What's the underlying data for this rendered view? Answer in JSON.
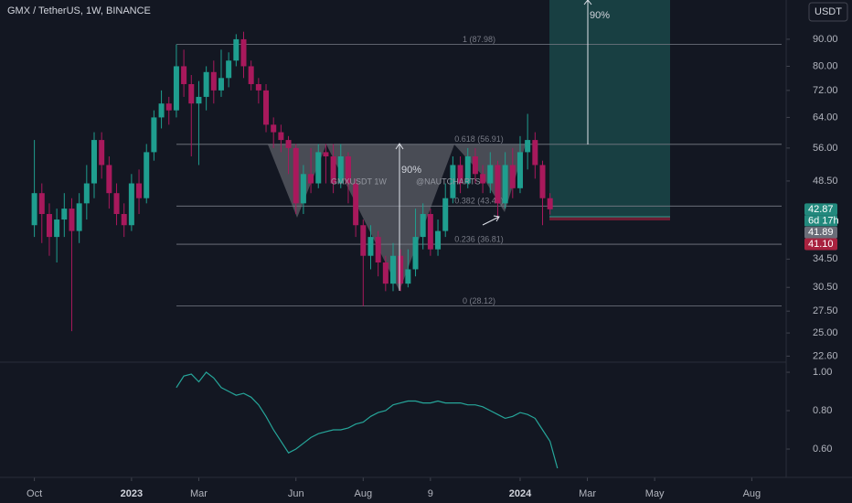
{
  "chart_data": [
    {
      "type": "candlestick",
      "title": "GMX / TetherUS, 1W, BINANCE",
      "log_scale": true,
      "x": [
        0,
        1,
        2,
        3,
        4,
        5,
        6,
        7,
        8,
        9,
        10,
        11,
        12,
        13,
        14,
        15,
        16,
        17,
        18,
        19,
        20,
        21,
        22,
        23,
        24,
        25,
        26,
        27,
        28,
        29,
        30,
        31,
        32,
        33,
        34,
        35,
        36,
        37,
        38,
        39,
        40,
        41,
        42,
        43,
        44,
        45,
        46,
        47,
        48,
        49,
        50,
        51,
        52,
        53,
        54,
        55,
        56,
        57,
        58,
        59,
        60,
        61,
        62,
        63,
        64,
        65,
        66,
        67,
        68,
        69
      ],
      "open": [
        40,
        46,
        42,
        38,
        41,
        43,
        39,
        44,
        48,
        58,
        52,
        46,
        42,
        40,
        48,
        45,
        55,
        64,
        68,
        66,
        80,
        74,
        68,
        70,
        78,
        72,
        76,
        82,
        90,
        80,
        74,
        72,
        62,
        60,
        58,
        56,
        44,
        50,
        48,
        55,
        54,
        48,
        54,
        48,
        40,
        35,
        38,
        34,
        31,
        35,
        31,
        33,
        38,
        42,
        36,
        39,
        45,
        52,
        48,
        54,
        50,
        48,
        52,
        44,
        52,
        47,
        55,
        58,
        52,
        45
      ],
      "high": [
        58,
        48,
        44,
        43,
        46,
        45,
        46,
        52,
        60,
        60,
        54,
        48,
        44,
        50,
        51,
        57,
        66,
        72,
        70,
        88,
        86,
        77,
        75,
        80,
        82,
        86,
        85,
        92,
        93,
        82,
        76,
        74,
        64,
        62,
        59,
        57,
        52,
        56,
        57,
        57,
        57,
        57,
        55,
        49,
        41,
        40,
        39,
        35,
        37,
        36,
        36,
        43,
        44,
        43,
        41,
        48,
        54,
        54,
        56,
        56,
        52,
        55,
        53,
        55,
        56,
        59,
        65,
        60,
        53,
        46
      ],
      "low": [
        38,
        37,
        35,
        34,
        38,
        25.2,
        37,
        41,
        45,
        49,
        43,
        40,
        38,
        39,
        42,
        44,
        53,
        61,
        62,
        64,
        70,
        54,
        52,
        66,
        68,
        70,
        73,
        80,
        76,
        72,
        68,
        60,
        56,
        55,
        50,
        42,
        42,
        46,
        47,
        48,
        46,
        47,
        44,
        38,
        28.1,
        33,
        32,
        30,
        30,
        30,
        30.5,
        32,
        36,
        35,
        35,
        38,
        44,
        46,
        47,
        48,
        46,
        46,
        41,
        43,
        45,
        46,
        51,
        49,
        40,
        41.9
      ],
      "close": [
        46,
        42,
        38,
        41,
        43,
        39,
        44,
        48,
        58,
        52,
        46,
        42,
        40,
        48,
        45,
        55,
        64,
        68,
        66,
        80,
        74,
        68,
        70,
        78,
        72,
        76,
        82,
        90,
        80,
        74,
        72,
        62,
        60,
        58,
        56,
        44,
        50,
        48,
        55,
        54,
        48,
        54,
        48,
        40,
        35,
        38,
        34,
        31,
        35,
        31,
        33,
        38,
        42,
        36,
        39,
        45,
        52,
        48,
        54,
        50,
        48,
        52,
        44,
        52,
        47,
        55,
        58,
        52,
        45,
        42.87
      ],
      "up_color": "#1f9e8f",
      "down_color": "#a8195c",
      "xlim": [
        -4.6,
        100.6
      ],
      "ylim": [
        22.1,
        106.8
      ],
      "yticks": [
        {
          "value": 90,
          "label": "90.00"
        },
        {
          "value": 80,
          "label": "80.00"
        },
        {
          "value": 72,
          "label": "72.00"
        },
        {
          "value": 64,
          "label": "64.00"
        },
        {
          "value": 56,
          "label": "56.00"
        },
        {
          "value": 48.5,
          "label": "48.50"
        },
        {
          "value": 34.5,
          "label": "34.50"
        },
        {
          "value": 30.5,
          "label": "30.50"
        },
        {
          "value": 27.5,
          "label": "27.50"
        },
        {
          "value": 25,
          "label": "25.00"
        },
        {
          "value": 22.6,
          "label": "22.60"
        }
      ],
      "xticks": [
        {
          "value": 0,
          "label": "Oct"
        },
        {
          "value": 13,
          "label": "2023"
        },
        {
          "value": 22,
          "label": "Mar"
        },
        {
          "value": 35,
          "label": "Jun"
        },
        {
          "value": 44,
          "label": "Aug"
        },
        {
          "value": 53,
          "label": "9"
        },
        {
          "value": 65,
          "label": "2024"
        },
        {
          "value": 74,
          "label": "Mar"
        },
        {
          "value": 83,
          "label": "May"
        },
        {
          "value": 96,
          "label": "Aug"
        }
      ],
      "fib_levels": [
        {
          "value": 87.98,
          "label": "1 (87.98)"
        },
        {
          "value": 56.91,
          "label": "0.618 (56.91)"
        },
        {
          "value": 43.48,
          "label": "0.382 (43.48)"
        },
        {
          "value": 36.81,
          "label": "0.236 (36.81)"
        },
        {
          "value": 28.12,
          "label": "0 (28.12)"
        }
      ],
      "price_labels": [
        {
          "value": 42.87,
          "label": "42.87",
          "color": "#22897d"
        },
        {
          "value": 41.89,
          "label": "41.89",
          "color": "#6a6d78"
        },
        {
          "value": 41.1,
          "label": "41.10",
          "color": "#a8223f"
        }
      ],
      "countdown": "6d 17h",
      "annotations": [
        "90%",
        "90%",
        "GMXUSDT 1W",
        "@NAUTCHARTS"
      ],
      "currency_button": "USDT"
    },
    {
      "type": "line",
      "color": "#26a69a",
      "xlim": [
        -4.6,
        100.6
      ],
      "ylim": [
        0.462,
        1.043
      ],
      "yticks": [
        {
          "value": 1,
          "label": "1.00"
        },
        {
          "value": 0.8,
          "label": "0.80"
        },
        {
          "value": 0.6,
          "label": "0.60"
        }
      ],
      "x": [
        19,
        20,
        21,
        22,
        23,
        24,
        25,
        26,
        27,
        28,
        29,
        30,
        31,
        32,
        33,
        34,
        35,
        36,
        37,
        38,
        39,
        40,
        41,
        42,
        43,
        44,
        45,
        46,
        47,
        48,
        49,
        50,
        51,
        52,
        53,
        54,
        55,
        56,
        57,
        58,
        59,
        60,
        61,
        62,
        63,
        64,
        65,
        66,
        67,
        68,
        69,
        70
      ],
      "values": [
        0.92,
        0.98,
        0.99,
        0.95,
        1.0,
        0.97,
        0.92,
        0.9,
        0.88,
        0.89,
        0.87,
        0.83,
        0.77,
        0.7,
        0.64,
        0.58,
        0.6,
        0.63,
        0.66,
        0.68,
        0.69,
        0.7,
        0.7,
        0.71,
        0.73,
        0.74,
        0.77,
        0.79,
        0.8,
        0.83,
        0.84,
        0.85,
        0.85,
        0.84,
        0.84,
        0.85,
        0.84,
        0.84,
        0.84,
        0.83,
        0.83,
        0.82,
        0.8,
        0.78,
        0.76,
        0.77,
        0.79,
        0.78,
        0.76,
        0.7,
        0.64,
        0.5
      ]
    }
  ]
}
